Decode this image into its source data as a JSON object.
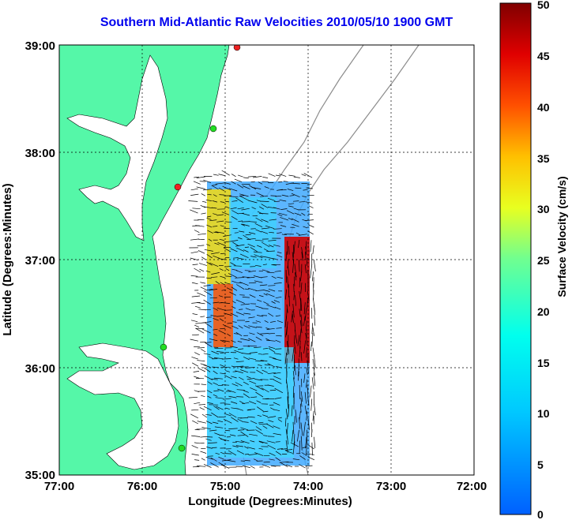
{
  "title": "Southern Mid-Atlantic Raw Velocities 2010/05/10 1900 GMT",
  "x_axis": {
    "label": "Longitude (Degrees:Minutes)",
    "ticks": [
      "77:00",
      "76:00",
      "75:00",
      "74:00",
      "73:00",
      "72:00"
    ]
  },
  "y_axis": {
    "label": "Latitude (Degrees:Minutes)",
    "ticks": [
      "39:00",
      "38:00",
      "37:00",
      "36:00",
      "35:00"
    ]
  },
  "colorbar": {
    "label": "Surface Velocity (cm/s)",
    "ticks": [
      "50",
      "45",
      "40",
      "35",
      "30",
      "25",
      "20",
      "15",
      "10",
      "5",
      "0"
    ]
  },
  "colors": {
    "land": "#55f7a8",
    "title": "#0000ee",
    "isobath": "#8c8c8c",
    "station_green": "#22dd22",
    "station_red": "#ee2222"
  },
  "chart_data": {
    "type": "heatmap",
    "xlim": [
      -77,
      -72
    ],
    "ylim": [
      35,
      39
    ],
    "colorbar_range": [
      0,
      50
    ],
    "grid": true
  }
}
